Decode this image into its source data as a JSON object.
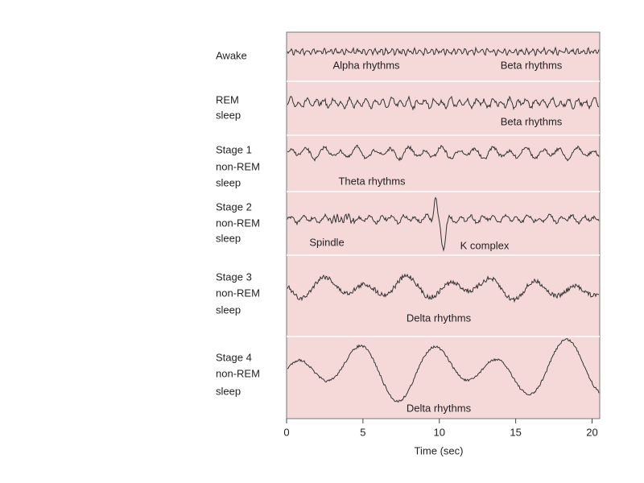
{
  "figure": {
    "rows": [
      {
        "label": [
          "Awake"
        ]
      },
      {
        "label": [
          "REM",
          "sleep"
        ]
      },
      {
        "label": [
          "Stage 1",
          "non-REM",
          "sleep"
        ]
      },
      {
        "label": [
          "Stage 2",
          "non-REM",
          "sleep"
        ]
      },
      {
        "label": [
          "Stage 3",
          "non-REM",
          "sleep"
        ]
      },
      {
        "label": [
          "Stage 4",
          "non-REM",
          "sleep"
        ]
      }
    ],
    "annotations": [
      "Alpha rhythms",
      "Beta rhythms",
      "Beta rhythms",
      "Theta rhythms",
      "Spindle",
      "K complex",
      "Delta rhythms",
      "Delta rhythms"
    ],
    "x_axis": {
      "label": "Time (sec)",
      "xlim": [
        0,
        20.5
      ],
      "xticks": [
        0,
        5,
        10,
        15,
        20
      ]
    }
  }
}
